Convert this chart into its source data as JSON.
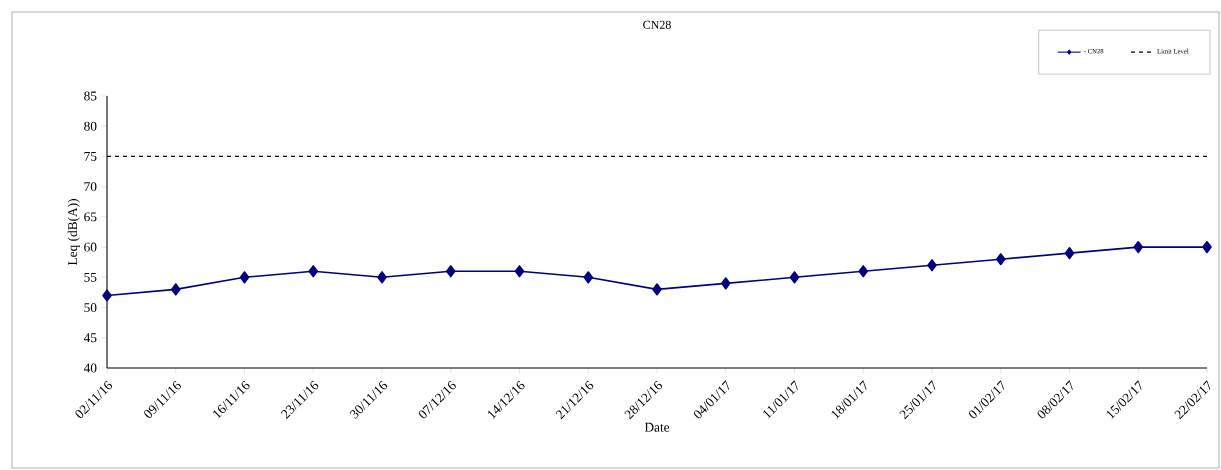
{
  "chart_data": {
    "type": "line",
    "title": "CN28",
    "xlabel": "Date",
    "ylabel": "Leq (dB(A))",
    "categories": [
      "02/11/16",
      "09/11/16",
      "16/11/16",
      "23/11/16",
      "30/11/16",
      "07/12/16",
      "14/12/16",
      "21/12/16",
      "28/12/16",
      "04/01/17",
      "11/01/17",
      "18/01/17",
      "25/01/17",
      "01/02/17",
      "08/02/17",
      "15/02/17",
      "22/02/17"
    ],
    "series": [
      {
        "name": "- CN28",
        "color": "#000080",
        "values": [
          52,
          53,
          55,
          56,
          55,
          56,
          56,
          55,
          53,
          54,
          55,
          56,
          57,
          58,
          59,
          60,
          60
        ]
      }
    ],
    "ref_lines": [
      {
        "axis": "y",
        "value": 75,
        "label": "Limit Level",
        "color": "#000000",
        "line_style": "dashed"
      }
    ],
    "ylim": [
      40,
      85
    ],
    "yticks": [
      40,
      45,
      50,
      55,
      60,
      65,
      70,
      75,
      80,
      85
    ],
    "grid": false,
    "legend": "top right",
    "marker": "diamond",
    "line_style": "solid"
  }
}
